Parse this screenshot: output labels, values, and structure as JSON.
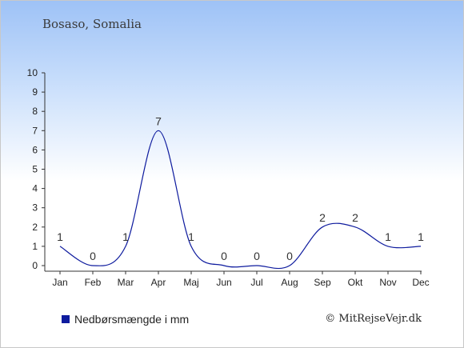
{
  "chart_data": {
    "type": "line",
    "title": "Bosaso, Somalia",
    "categories": [
      "Jan",
      "Feb",
      "Mar",
      "Apr",
      "Maj",
      "Jun",
      "Jul",
      "Aug",
      "Sep",
      "Okt",
      "Nov",
      "Dec"
    ],
    "series": [
      {
        "name": "Nedbørsmængde i mm",
        "values": [
          1,
          0,
          1,
          7,
          1,
          0,
          0,
          0,
          2,
          2,
          1,
          1
        ],
        "color": "#0e1b9e"
      }
    ],
    "yticks": [
      0,
      1,
      2,
      3,
      4,
      5,
      6,
      7,
      8,
      9,
      10
    ],
    "ylim": [
      0,
      10
    ],
    "grid": false,
    "legend": "bottom-left"
  },
  "copyright": "© MitRejseVejr.dk"
}
